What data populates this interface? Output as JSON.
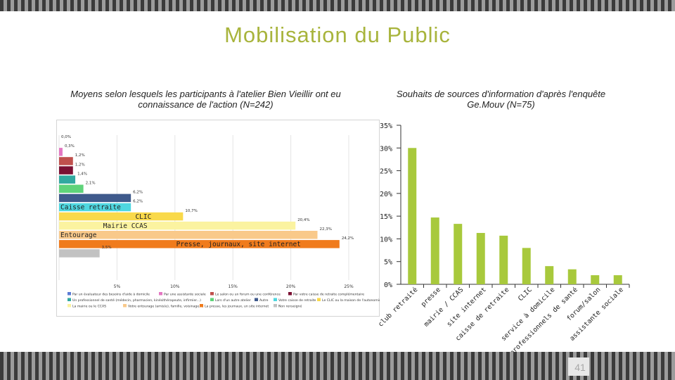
{
  "slide": {
    "title": "Mobilisation  du  Public",
    "page_number": "41"
  },
  "chart_data": [
    {
      "type": "bar",
      "orientation": "horizontal",
      "title": "Moyens selon lesquels les participants à l'atelier Bien Vieillir ont eu connaissance de l'action (N=242)",
      "xlim": [
        0,
        25
      ],
      "ticks": [
        "0%",
        "5%",
        "10%",
        "15%",
        "20%",
        "25%"
      ],
      "bars": [
        {
          "value": 0.0,
          "label": "0,0%",
          "color": "#5b7bd5",
          "inside": ""
        },
        {
          "value": 0.3,
          "label": "0,3%",
          "color": "#e377c2",
          "inside": ""
        },
        {
          "value": 1.2,
          "label": "1,2%",
          "color": "#c0504d",
          "inside": ""
        },
        {
          "value": 1.2,
          "label": "1,2%",
          "color": "#7b1033",
          "inside": ""
        },
        {
          "value": 1.4,
          "label": "1,4%",
          "color": "#31a9a0",
          "inside": ""
        },
        {
          "value": 2.1,
          "label": "2,1%",
          "color": "#5fd37a",
          "inside": ""
        },
        {
          "value": 6.2,
          "label": "6,2%",
          "color": "#3f5a8c",
          "inside": ""
        },
        {
          "value": 6.2,
          "label": "6,2%",
          "color": "#4fd7e0",
          "inside": "Caisse  retraite"
        },
        {
          "value": 10.7,
          "label": "10,7%",
          "color": "#f9d94a",
          "inside": "CLIC"
        },
        {
          "value": 20.4,
          "label": "20,4%",
          "color": "#fbf3a0",
          "inside": "Mairie  CCAS"
        },
        {
          "value": 22.3,
          "label": "22,3%",
          "color": "#f9c98a",
          "inside": "Entourage"
        },
        {
          "value": 24.2,
          "label": "24,2%",
          "color": "#f07b1c",
          "inside": "Presse,  journaux,  site  internet"
        },
        {
          "value": 3.5,
          "label": "3,5%",
          "color": "#c2c2c2",
          "inside": ""
        }
      ],
      "legend": [
        {
          "label": "Par un évaluateur des besoins d'aide à domicile",
          "color": "#5b7bd5"
        },
        {
          "label": "Par une assistante sociale",
          "color": "#e377c2"
        },
        {
          "label": "Le salon ou un forum ou une conférence",
          "color": "#c0504d"
        },
        {
          "label": "Par votre caisse de retraite complémentaire",
          "color": "#7b1033"
        },
        {
          "label": "Un professionnel de santé (médecin, pharmacien, kinésithérapeute, infirmier...)",
          "color": "#31a9a0"
        },
        {
          "label": "Lors d'un autre atelier",
          "color": "#5fd37a"
        },
        {
          "label": "Autre",
          "color": "#3f5a8c"
        },
        {
          "label": "Votre caisse de retraite",
          "color": "#4fd7e0"
        },
        {
          "label": "Le CLIC ou la maison de l'autonomie",
          "color": "#f9d94a"
        },
        {
          "label": "La mairie ou le CCAS",
          "color": "#fbf3a0"
        },
        {
          "label": "Votre entourage (amis(e), famille, voisinage...)",
          "color": "#f9c98a"
        },
        {
          "label": "La presse, les journaux, un site internet",
          "color": "#f07b1c"
        },
        {
          "label": "Non renseigné",
          "color": "#c2c2c2"
        }
      ]
    },
    {
      "type": "bar",
      "title": "Souhaits de sources d'information d'après l'enquête Ge.Mouv (N=75)",
      "ylim": [
        0,
        35
      ],
      "yticks": [
        "0%",
        "5%",
        "10%",
        "15%",
        "20%",
        "25%",
        "30%",
        "35%"
      ],
      "categories": [
        "club  retraité",
        "presse",
        "mairie  /  CCAS",
        "site  internet",
        "caisse  de  retraite",
        "CLIC",
        "service  à  domicile",
        "professionnels  de  santé",
        "forum/salon",
        "assistante  sociale"
      ],
      "values": [
        30,
        14.7,
        13.3,
        11.3,
        10.7,
        8,
        4,
        3.3,
        2,
        2
      ],
      "color": "#a8c93c"
    }
  ]
}
